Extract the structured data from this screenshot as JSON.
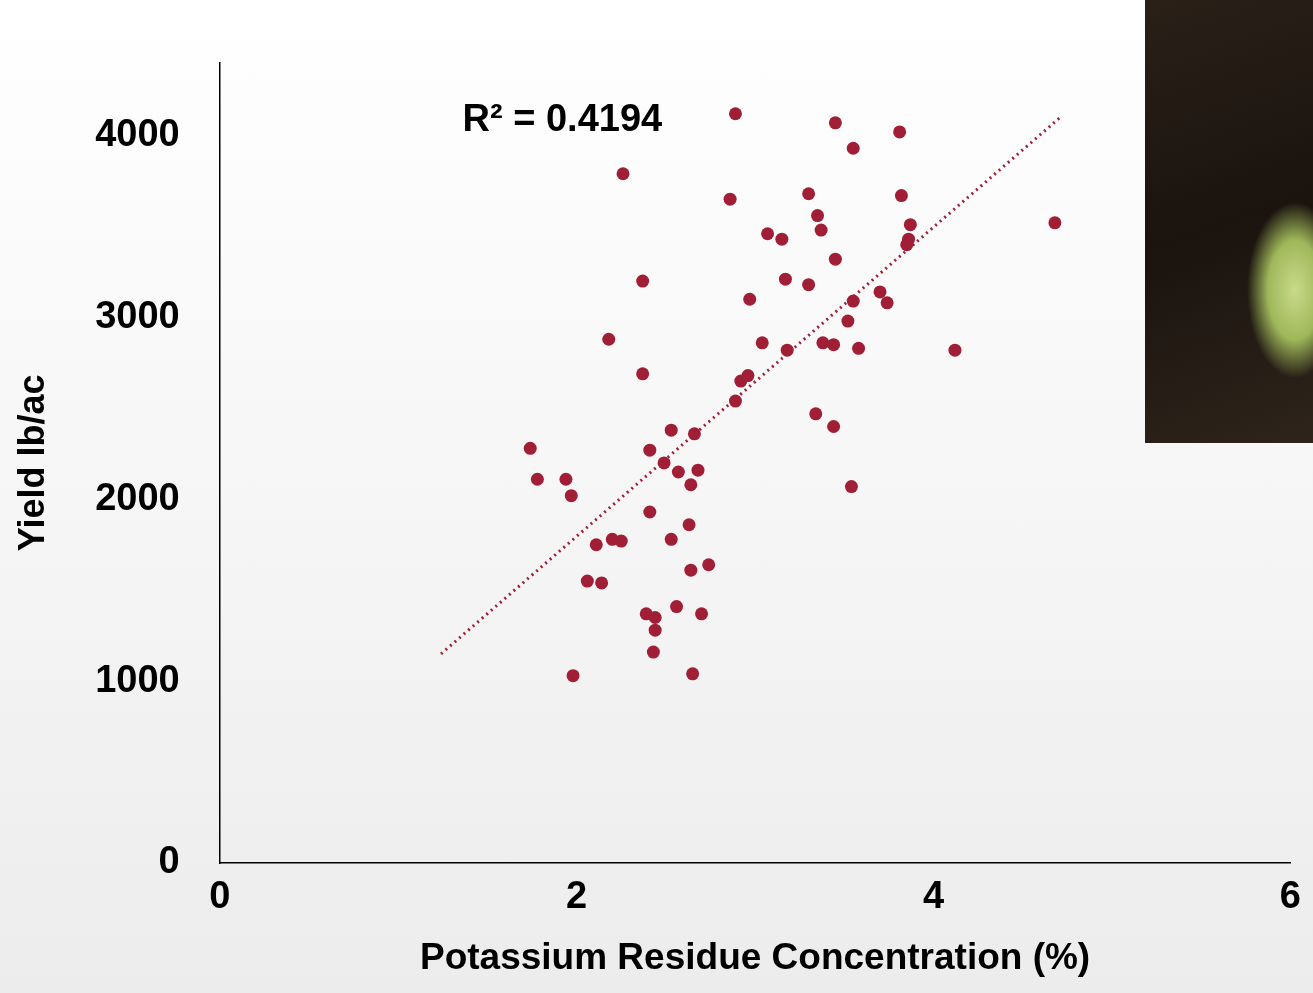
{
  "chart_data": {
    "type": "scatter",
    "x_label": "Potassium Residue Concentration (%)",
    "y_label": "Yield lb/ac",
    "annotation": "R² = 0.4194",
    "xlim": [
      0,
      6
    ],
    "xticks": [
      0,
      2,
      4,
      6
    ],
    "ylim": [
      0,
      4400
    ],
    "yticks": [
      0,
      1000,
      2000,
      3000,
      4000
    ],
    "grid": false,
    "series": [
      {
        "type": "scatter",
        "marker": "circle",
        "color": "#a11f36",
        "x": [
          2.89,
          3.45,
          3.81,
          3.55,
          2.26,
          2.86,
          3.3,
          3.82,
          3.35,
          3.37,
          4.68,
          3.87,
          3.07,
          3.15,
          3.86,
          3.85,
          3.45,
          2.37,
          3.17,
          3.3,
          2.97,
          3.55,
          3.7,
          3.74,
          2.18,
          3.52,
          3.04,
          3.38,
          3.44,
          3.18,
          3.58,
          4.12,
          2.37,
          2.96,
          2.92,
          2.89,
          3.34,
          3.44,
          2.53,
          2.66,
          1.74,
          2.41,
          2.49,
          2.57,
          2.68,
          1.78,
          1.94,
          2.64,
          3.54,
          1.97,
          2.41,
          2.63,
          2.53,
          2.2,
          2.25,
          2.11,
          2.74,
          2.64,
          2.06,
          2.14,
          2.56,
          2.39,
          2.7,
          2.44,
          2.44,
          2.43,
          1.98,
          2.65
        ],
        "values": [
          4120,
          4070,
          4020,
          3930,
          3790,
          3650,
          3680,
          3670,
          3560,
          3480,
          3520,
          3510,
          3460,
          3430,
          3430,
          3400,
          3320,
          3200,
          3210,
          3180,
          3100,
          3090,
          3140,
          3080,
          2880,
          2980,
          2860,
          2860,
          2850,
          2820,
          2830,
          2820,
          2690,
          2680,
          2650,
          2540,
          2470,
          2400,
          2380,
          2360,
          2280,
          2270,
          2200,
          2150,
          2160,
          2110,
          2110,
          2080,
          2070,
          2020,
          1930,
          1860,
          1780,
          1780,
          1770,
          1750,
          1640,
          1610,
          1550,
          1540,
          1410,
          1370,
          1370,
          1350,
          1280,
          1160,
          1030,
          1040
        ]
      },
      {
        "type": "line",
        "line_style": "dotted",
        "color": "#a11f36",
        "x": [
          1.24,
          4.71
        ],
        "values": [
          1150,
          4100
        ]
      }
    ]
  }
}
